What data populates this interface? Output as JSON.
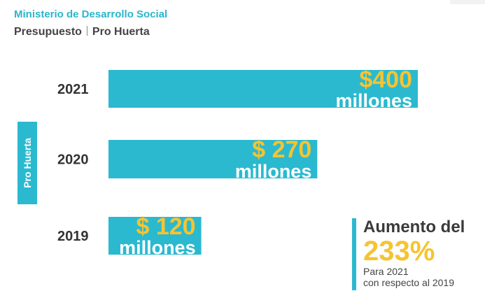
{
  "header": {
    "organization": "Ministerio de Desarrollo Social",
    "section": "Presupuesto",
    "program": "Pro Huerta"
  },
  "side_label": "Pro Huerta",
  "chart_data": {
    "type": "bar",
    "orientation": "horizontal",
    "categories": [
      "2021",
      "2020",
      "2019"
    ],
    "values": [
      400,
      270,
      120
    ],
    "value_labels": [
      "$400",
      "$ 270",
      "$ 120"
    ],
    "unit_label": "millones",
    "title": "",
    "xlabel": "",
    "ylabel": "Pro Huerta",
    "xlim": [
      0,
      400
    ],
    "grid": false,
    "bar_color": "#2bb9cf",
    "value_color": "#f5c431",
    "unit_color": "#ffffff"
  },
  "callout": {
    "heading": "Aumento del",
    "percent": "233%",
    "line1": "Para 2021",
    "line2": "con respecto al 2019",
    "accent_color": "#f5c431"
  }
}
